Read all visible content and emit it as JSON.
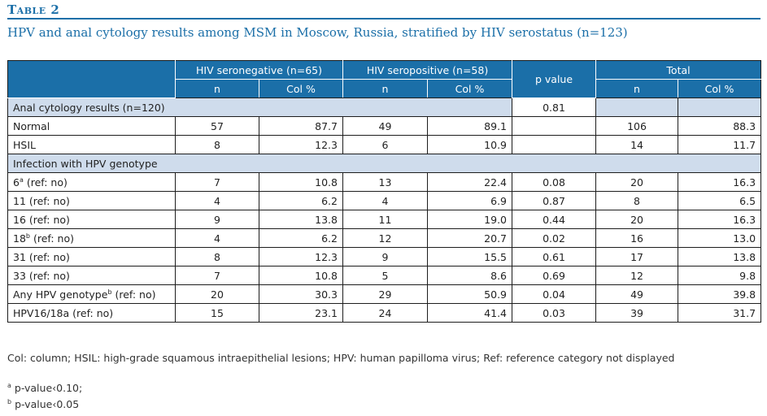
{
  "table_label": "Table 2",
  "caption": "HPV and anal cytology results among MSM in Moscow, Russia, stratified by HIV serostatus (n=123)",
  "header": {
    "group_seroneg": "HIV seronegative (n=65)",
    "group_seropos": "HIV seropositive (n=58)",
    "p_value": "p value",
    "group_total": "Total",
    "n": "n",
    "col_pct": "Col %"
  },
  "sections": {
    "cytology": {
      "label": "Anal cytology results (n=120)",
      "p": "0.81"
    },
    "hpv": {
      "label": "Infection with HPV genotype"
    }
  },
  "cytology_rows": [
    {
      "label": "Normal",
      "sup": "",
      "suffix": "",
      "neg_n": "57",
      "neg_pct": "87.7",
      "pos_n": "49",
      "pos_pct": "89.1",
      "p": "",
      "tot_n": "106",
      "tot_pct": "88.3"
    },
    {
      "label": "HSIL",
      "sup": "",
      "suffix": "",
      "neg_n": "8",
      "neg_pct": "12.3",
      "pos_n": "6",
      "pos_pct": "10.9",
      "p": "",
      "tot_n": "14",
      "tot_pct": "11.7"
    }
  ],
  "hpv_rows": [
    {
      "label": "6",
      "sup": "a",
      "suffix": " (ref: no)",
      "neg_n": "7",
      "neg_pct": "10.8",
      "pos_n": "13",
      "pos_pct": "22.4",
      "p": "0.08",
      "tot_n": "20",
      "tot_pct": "16.3"
    },
    {
      "label": "11 (ref: no)",
      "sup": "",
      "suffix": "",
      "neg_n": "4",
      "neg_pct": "6.2",
      "pos_n": "4",
      "pos_pct": "6.9",
      "p": "0.87",
      "tot_n": "8",
      "tot_pct": "6.5"
    },
    {
      "label": "16 (ref: no)",
      "sup": "",
      "suffix": "",
      "neg_n": "9",
      "neg_pct": "13.8",
      "pos_n": "11",
      "pos_pct": "19.0",
      "p": "0.44",
      "tot_n": "20",
      "tot_pct": "16.3"
    },
    {
      "label": "18",
      "sup": "b",
      "suffix": " (ref: no)",
      "neg_n": "4",
      "neg_pct": "6.2",
      "pos_n": "12",
      "pos_pct": "20.7",
      "p": "0.02",
      "tot_n": "16",
      "tot_pct": "13.0"
    },
    {
      "label": "31 (ref: no)",
      "sup": "",
      "suffix": "",
      "neg_n": "8",
      "neg_pct": "12.3",
      "pos_n": "9",
      "pos_pct": "15.5",
      "p": "0.61",
      "tot_n": "17",
      "tot_pct": "13.8"
    },
    {
      "label": "33 (ref: no)",
      "sup": "",
      "suffix": "",
      "neg_n": "7",
      "neg_pct": "10.8",
      "pos_n": "5",
      "pos_pct": "8.6",
      "p": "0.69",
      "tot_n": "12",
      "tot_pct": "9.8"
    },
    {
      "label": "Any HPV genotype",
      "sup": "b",
      "suffix": " (ref: no)",
      "neg_n": "20",
      "neg_pct": "30.3",
      "pos_n": "29",
      "pos_pct": "50.9",
      "p": "0.04",
      "tot_n": "49",
      "tot_pct": "39.8"
    },
    {
      "label": "HPV16/18a (ref: no)",
      "sup": "",
      "suffix": "",
      "neg_n": "15",
      "neg_pct": "23.1",
      "pos_n": "24",
      "pos_pct": "41.4",
      "p": "0.03",
      "tot_n": "39",
      "tot_pct": "31.7"
    }
  ],
  "abbreviations": "Col: column; HSIL: high-grade squamous intraepithelial lesions; HPV: human papilloma virus; Ref: reference category not displayed",
  "footnotes": [
    {
      "mark": "a",
      "text": "p-value‹0.10;"
    },
    {
      "mark": "b",
      "text": "p-value‹0.05"
    }
  ],
  "colors": {
    "accent": "#1b6fa8",
    "section_bg": "#cfdcec"
  }
}
